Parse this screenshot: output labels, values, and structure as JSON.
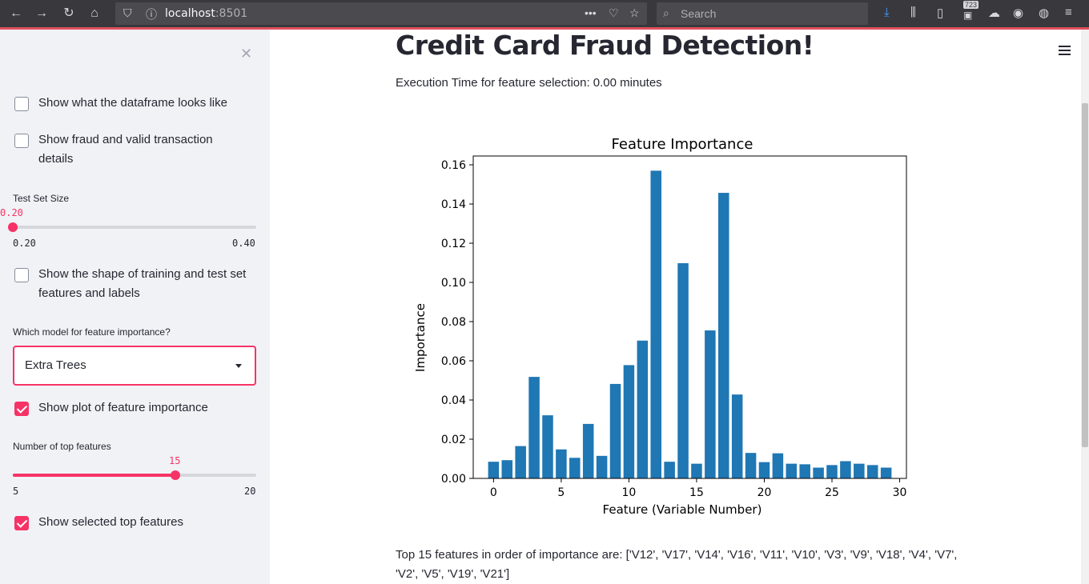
{
  "browser": {
    "url_host": "localhost",
    "url_port": ":8501",
    "search_placeholder": "Search",
    "badge_count": "723"
  },
  "sidebar": {
    "checkbox_dataframe": {
      "label": "Show what the dataframe looks like",
      "checked": false
    },
    "checkbox_fraud_details": {
      "label": "Show fraud and valid transaction details",
      "checked": false
    },
    "test_size_slider": {
      "label": "Test Set Size",
      "value": "0.20",
      "min": "0.20",
      "max": "0.40",
      "fraction": 0.0
    },
    "checkbox_shape": {
      "label": "Show the shape of training and test set features and labels",
      "checked": false
    },
    "model_select": {
      "label": "Which model for feature importance?",
      "value": "Extra Trees"
    },
    "checkbox_plot_importance": {
      "label": "Show plot of feature importance",
      "checked": true
    },
    "top_features_slider": {
      "label": "Number of top features",
      "value": "15",
      "min": "5",
      "max": "20",
      "fraction": 0.6667
    },
    "checkbox_selected_features": {
      "label": "Show selected top features",
      "checked": true
    }
  },
  "main": {
    "title": "Credit Card Fraud Detection!",
    "execution_text": "Execution Time for feature selection: 0.00 minutes",
    "top_features_text": "Top 15 features in order of importance are: ['V12', 'V17', 'V14', 'V16', 'V11', 'V10', 'V3', 'V9', 'V18', 'V4', 'V7', 'V2', 'V5', 'V19', 'V21']"
  },
  "chart_data": {
    "type": "bar",
    "title": "Feature Importance",
    "xlabel": "Feature (Variable Number)",
    "ylabel": "Importance",
    "x": [
      0,
      1,
      2,
      3,
      4,
      5,
      6,
      7,
      8,
      9,
      10,
      11,
      12,
      13,
      14,
      15,
      16,
      17,
      18,
      19,
      20,
      21,
      22,
      23,
      24,
      25,
      26,
      27,
      28,
      29
    ],
    "values": [
      0.0085,
      0.0093,
      0.0165,
      0.0518,
      0.0322,
      0.0148,
      0.0105,
      0.0278,
      0.0115,
      0.0482,
      0.0578,
      0.0703,
      0.157,
      0.0085,
      0.1098,
      0.0075,
      0.0755,
      0.1457,
      0.0428,
      0.013,
      0.0083,
      0.0128,
      0.0075,
      0.0072,
      0.0055,
      0.0068,
      0.0088,
      0.0075,
      0.0068,
      0.0055
    ],
    "xticks": [
      "0",
      "5",
      "10",
      "15",
      "20",
      "25",
      "30"
    ],
    "yticks": [
      "0.00",
      "0.02",
      "0.04",
      "0.06",
      "0.08",
      "0.10",
      "0.12",
      "0.14",
      "0.16"
    ],
    "xlim": [
      -1.5,
      30.5
    ],
    "ylim": [
      0,
      0.1645
    ],
    "bar_color": "#1f77b4"
  }
}
